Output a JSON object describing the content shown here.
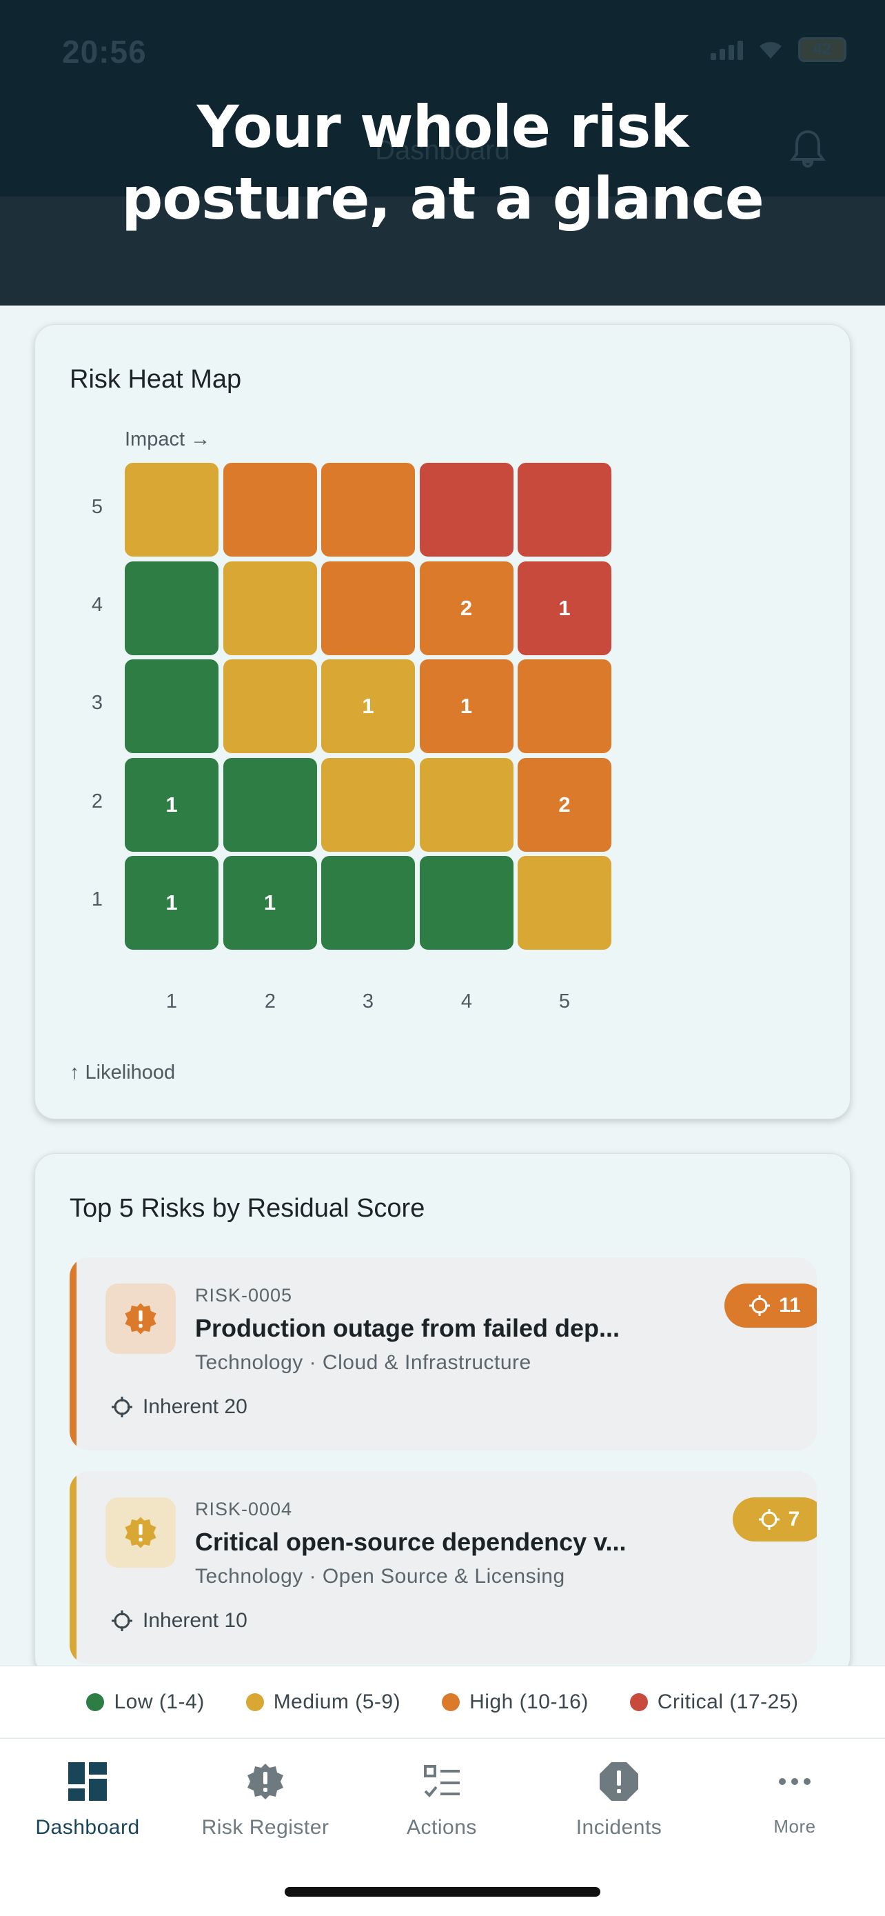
{
  "status_bar": {
    "time": "20:56",
    "battery": "42"
  },
  "app_header": {
    "title": "Dashboard",
    "bell_icon": "bell-icon"
  },
  "headline": {
    "line1": "Your whole risk",
    "line2": "posture, at a glance"
  },
  "heat_map": {
    "title": "Risk Heat Map",
    "impact_label": "Impact →",
    "likelihood_label": "↑ Likelihood",
    "row_labels": [
      "5",
      "4",
      "3",
      "2",
      "1"
    ],
    "col_labels": [
      "1",
      "2",
      "3",
      "4",
      "5"
    ],
    "rows": [
      [
        {
          "color": "#d9a733",
          "count": ""
        },
        {
          "color": "#dc7a2c",
          "count": ""
        },
        {
          "color": "#dc7a2c",
          "count": ""
        },
        {
          "color": "#c74a3c",
          "count": ""
        },
        {
          "color": "#c74a3c",
          "count": ""
        }
      ],
      [
        {
          "color": "#2e7d45",
          "count": ""
        },
        {
          "color": "#d9a733",
          "count": ""
        },
        {
          "color": "#dc7a2c",
          "count": ""
        },
        {
          "color": "#dc7a2c",
          "count": "2"
        },
        {
          "color": "#c74a3c",
          "count": "1"
        }
      ],
      [
        {
          "color": "#2e7d45",
          "count": ""
        },
        {
          "color": "#d9a733",
          "count": ""
        },
        {
          "color": "#d9a733",
          "count": "1"
        },
        {
          "color": "#dc7a2c",
          "count": "1"
        },
        {
          "color": "#dc7a2c",
          "count": ""
        }
      ],
      [
        {
          "color": "#2e7d45",
          "count": "1"
        },
        {
          "color": "#2e7d45",
          "count": ""
        },
        {
          "color": "#d9a733",
          "count": ""
        },
        {
          "color": "#d9a733",
          "count": ""
        },
        {
          "color": "#dc7a2c",
          "count": "2"
        }
      ],
      [
        {
          "color": "#2e7d45",
          "count": "1"
        },
        {
          "color": "#2e7d45",
          "count": "1"
        },
        {
          "color": "#2e7d45",
          "count": ""
        },
        {
          "color": "#2e7d45",
          "count": ""
        },
        {
          "color": "#d9a733",
          "count": ""
        }
      ]
    ]
  },
  "top_risks": {
    "title": "Top 5 Risks by Residual Score",
    "items": [
      {
        "code": "RISK-0005",
        "title": "Production outage from failed dep...",
        "category": "Technology · Cloud & Infrastructure",
        "inherent": "Inherent 20",
        "score": "11",
        "accent": "#dc7a2c",
        "icon_bg": "#f1dcc9"
      },
      {
        "code": "RISK-0004",
        "title": "Critical open-source dependency v...",
        "category": "Technology · Open Source & Licensing",
        "inherent": "Inherent 10",
        "score": "7",
        "accent": "#d9a733",
        "icon_bg": "#f1e5c6"
      }
    ]
  },
  "legend": [
    {
      "label": "Low (1-4)",
      "color": "#2e7d45"
    },
    {
      "label": "Medium (5-9)",
      "color": "#d9a733"
    },
    {
      "label": "High (10-16)",
      "color": "#dc7a2c"
    },
    {
      "label": "Critical (17-25)",
      "color": "#c74a3c"
    }
  ],
  "tabs": [
    {
      "label": "Dashboard",
      "icon": "dashboard-icon",
      "active": true
    },
    {
      "label": "Risk Register",
      "icon": "warning-badge-icon",
      "active": false
    },
    {
      "label": "Actions",
      "icon": "checklist-icon",
      "active": false
    },
    {
      "label": "Incidents",
      "icon": "alert-octagon-icon",
      "active": false
    },
    {
      "label": "More",
      "icon": "more-horizontal-icon",
      "active": false
    }
  ]
}
